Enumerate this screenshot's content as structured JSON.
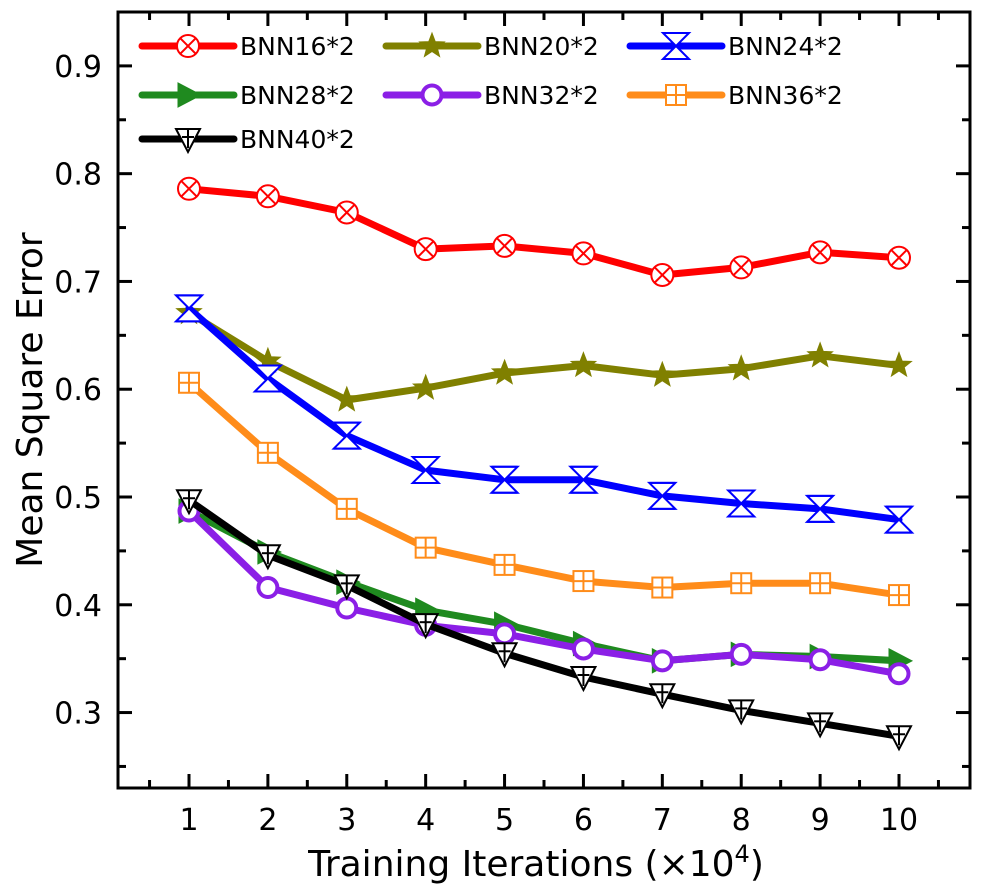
{
  "chart_data": {
    "type": "line",
    "xlabel": "Training Iterations (×10",
    "xlabel_exponent": "4",
    "xlabel_close": ")",
    "ylabel": "Mean Square Error",
    "x": [
      1,
      2,
      3,
      4,
      5,
      6,
      7,
      8,
      9,
      10
    ],
    "xlim": [
      0.1,
      10.9
    ],
    "ylim": [
      0.23,
      0.95
    ],
    "yticks": [
      0.3,
      0.4,
      0.5,
      0.6,
      0.7,
      0.8,
      0.9
    ],
    "ytick_labels": [
      "0.3",
      "0.4",
      "0.5",
      "0.6",
      "0.7",
      "0.8",
      "0.9"
    ],
    "xtick_labels": [
      "1",
      "2",
      "3",
      "4",
      "5",
      "6",
      "7",
      "8",
      "9",
      "10"
    ],
    "legend_position": "top-left",
    "series": [
      {
        "name": "BNN16*2",
        "color": "#ff0000",
        "marker": "circle-x",
        "values": [
          0.786,
          0.779,
          0.764,
          0.73,
          0.733,
          0.726,
          0.706,
          0.713,
          0.727,
          0.722
        ]
      },
      {
        "name": "BNN20*2",
        "color": "#808000",
        "marker": "star",
        "values": [
          0.671,
          0.626,
          0.59,
          0.601,
          0.615,
          0.622,
          0.613,
          0.619,
          0.631,
          0.622
        ]
      },
      {
        "name": "BNN24*2",
        "color": "#0000ff",
        "marker": "hourglass",
        "values": [
          0.675,
          0.61,
          0.557,
          0.525,
          0.516,
          0.516,
          0.501,
          0.494,
          0.489,
          0.479
        ]
      },
      {
        "name": "BNN28*2",
        "color": "#1f8a1f",
        "marker": "triangle-right",
        "values": [
          0.487,
          0.449,
          0.421,
          0.395,
          0.382,
          0.364,
          0.348,
          0.354,
          0.352,
          0.348
        ]
      },
      {
        "name": "BNN32*2",
        "color": "#8b1fe6",
        "marker": "circle",
        "values": [
          0.487,
          0.416,
          0.397,
          0.381,
          0.373,
          0.359,
          0.348,
          0.354,
          0.349,
          0.336
        ]
      },
      {
        "name": "BNN36*2",
        "color": "#ff8c1a",
        "marker": "square-plus",
        "values": [
          0.606,
          0.541,
          0.489,
          0.453,
          0.437,
          0.422,
          0.416,
          0.42,
          0.42,
          0.409
        ]
      },
      {
        "name": "BNN40*2",
        "color": "#000000",
        "marker": "triangle-down-plus",
        "values": [
          0.497,
          0.446,
          0.418,
          0.382,
          0.355,
          0.333,
          0.317,
          0.302,
          0.29,
          0.278
        ]
      }
    ]
  }
}
